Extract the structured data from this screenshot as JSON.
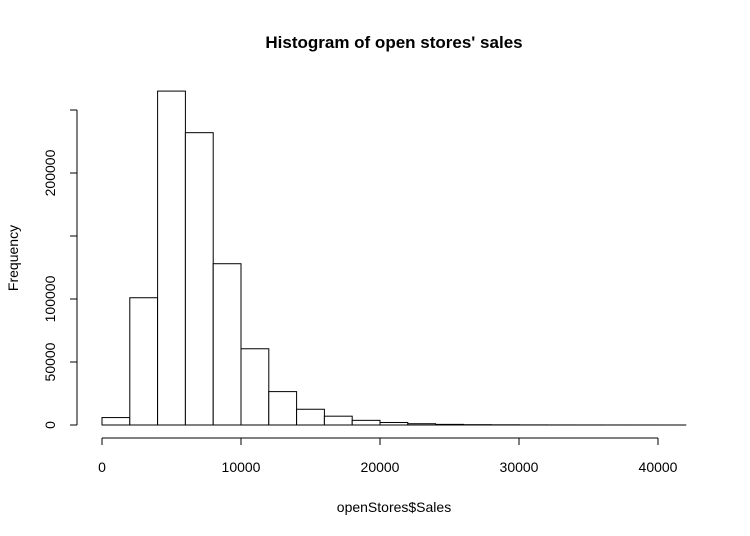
{
  "chart_data": {
    "type": "bar",
    "title": "Histogram of open stores' sales",
    "xlabel": "openStores$Sales",
    "ylabel": "Frequency",
    "bin_width": 2000,
    "bins": [
      {
        "start": 0,
        "end": 2000,
        "count": 5900
      },
      {
        "start": 2000,
        "end": 4000,
        "count": 101000
      },
      {
        "start": 4000,
        "end": 6000,
        "count": 265000
      },
      {
        "start": 6000,
        "end": 8000,
        "count": 232000
      },
      {
        "start": 8000,
        "end": 10000,
        "count": 128000
      },
      {
        "start": 10000,
        "end": 12000,
        "count": 60500
      },
      {
        "start": 12000,
        "end": 14000,
        "count": 26500
      },
      {
        "start": 14000,
        "end": 16000,
        "count": 12500
      },
      {
        "start": 16000,
        "end": 18000,
        "count": 7000
      },
      {
        "start": 18000,
        "end": 20000,
        "count": 3700
      },
      {
        "start": 20000,
        "end": 22000,
        "count": 2000
      },
      {
        "start": 22000,
        "end": 24000,
        "count": 1000
      },
      {
        "start": 24000,
        "end": 26000,
        "count": 500
      },
      {
        "start": 26000,
        "end": 28000,
        "count": 250
      },
      {
        "start": 28000,
        "end": 30000,
        "count": 150
      },
      {
        "start": 30000,
        "end": 32000,
        "count": 80
      },
      {
        "start": 32000,
        "end": 34000,
        "count": 50
      },
      {
        "start": 34000,
        "end": 36000,
        "count": 30
      },
      {
        "start": 36000,
        "end": 38000,
        "count": 20
      },
      {
        "start": 38000,
        "end": 40000,
        "count": 10
      },
      {
        "start": 40000,
        "end": 42000,
        "count": 5
      }
    ],
    "xlim": [
      0,
      42000
    ],
    "ylim": [
      0,
      250000
    ],
    "x_ticks": [
      {
        "value": 0,
        "label": "0"
      },
      {
        "value": 10000,
        "label": "10000"
      },
      {
        "value": 20000,
        "label": "20000"
      },
      {
        "value": 30000,
        "label": "30000"
      },
      {
        "value": 40000,
        "label": "40000"
      }
    ],
    "y_ticks": [
      {
        "value": 0,
        "label": "0"
      },
      {
        "value": 50000,
        "label": "50000"
      },
      {
        "value": 100000,
        "label": "100000"
      },
      {
        "value": 150000,
        "label": ""
      },
      {
        "value": 200000,
        "label": "200000"
      },
      {
        "value": 250000,
        "label": ""
      }
    ],
    "grid": false,
    "colors": {
      "bar_fill": "#ffffff",
      "bar_stroke": "#000000"
    }
  }
}
